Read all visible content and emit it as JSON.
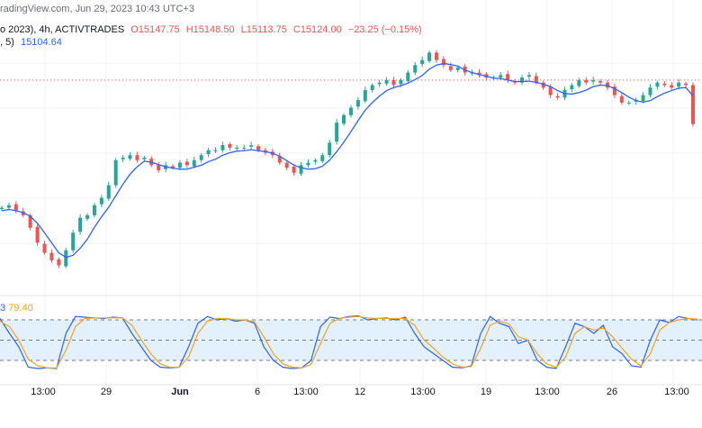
{
  "header": {
    "source_line": "radingView.com, Jun 29, 2023 10:43 UTC+3",
    "symbol_line_prefix": "o 2023), 4h, ACTIVTRADES",
    "open": "O15147.75",
    "high": "H15148.50",
    "low": "L15113.75",
    "close": "C15124.00",
    "change": "−23.25 (−0.15%)",
    "ma_label": ", 5)",
    "ma_value": "15104.64"
  },
  "oscillator": {
    "label_prefix": "3",
    "value": "79.40"
  },
  "time_axis": {
    "labels": [
      "13:00",
      "29",
      "Jun",
      "6",
      "13:00",
      "12",
      "13:00",
      "19",
      "13:00",
      "26",
      "13:00"
    ]
  },
  "colors": {
    "up": "#26a69a",
    "down": "#ef5350",
    "ma": "#2962ff",
    "stoch_k": "#2962ff",
    "stoch_d": "#f7a21b",
    "band_fill": "#e3f0fd",
    "last_price_line": "#ef5350"
  },
  "chart_data": [
    {
      "type": "candlestick",
      "title": "",
      "series": [
        {
          "name": "Price",
          "close_path": [
            14790,
            14800,
            14780,
            14760,
            14710,
            14650,
            14610,
            14580,
            14560,
            14620,
            14690,
            14750,
            14760,
            14800,
            14830,
            14880,
            14980,
            14990,
            15000,
            14980,
            14990,
            14960,
            14940,
            14960,
            14950,
            14970,
            14960,
            14980,
            15000,
            15020,
            15020,
            15040,
            15030,
            15030,
            15030,
            15040,
            15020,
            15010,
            15000,
            14970,
            14950,
            14930,
            14960,
            14970,
            14980,
            15000,
            15050,
            15130,
            15160,
            15190,
            15220,
            15260,
            15280,
            15290,
            15300,
            15280,
            15300,
            15330,
            15360,
            15380,
            15410,
            15380,
            15360,
            15340,
            15350,
            15330,
            15330,
            15320,
            15310,
            15310,
            15320,
            15300,
            15290,
            15310,
            15320,
            15290,
            15270,
            15240,
            15230,
            15260,
            15280,
            15300,
            15290,
            15300,
            15290,
            15270,
            15240,
            15210,
            15210,
            15220,
            15240,
            15270,
            15290,
            15280,
            15270,
            15290,
            15280,
            15124
          ]
        },
        {
          "name": "MA",
          "value": 15104.64
        }
      ]
    },
    {
      "type": "line",
      "title": "",
      "ylim": [
        0,
        100
      ],
      "levels": [
        80,
        50,
        20
      ],
      "series": [
        {
          "name": "%K",
          "values": [
            82,
            60,
            40,
            10,
            8,
            9,
            8,
            60,
            85,
            84,
            83,
            82,
            84,
            83,
            60,
            40,
            20,
            10,
            9,
            10,
            40,
            75,
            85,
            80,
            82,
            78,
            80,
            75,
            40,
            20,
            10,
            8,
            9,
            20,
            70,
            84,
            82,
            85,
            86,
            80,
            82,
            83,
            80,
            84,
            60,
            40,
            30,
            20,
            10,
            9,
            12,
            60,
            85,
            75,
            70,
            45,
            50,
            20,
            10,
            8,
            40,
            75,
            70,
            60,
            72,
            40,
            30,
            12,
            10,
            50,
            80,
            76,
            85,
            82,
            80
          ]
        },
        {
          "name": "%D",
          "values": [
            78,
            70,
            50,
            22,
            12,
            9,
            9,
            35,
            70,
            82,
            83,
            83,
            83,
            83,
            72,
            50,
            30,
            15,
            10,
            10,
            25,
            60,
            78,
            82,
            82,
            80,
            80,
            77,
            55,
            30,
            15,
            10,
            9,
            14,
            45,
            75,
            82,
            84,
            85,
            83,
            82,
            82,
            82,
            82,
            72,
            50,
            38,
            25,
            15,
            10,
            11,
            38,
            72,
            78,
            74,
            55,
            50,
            30,
            15,
            10,
            25,
            60,
            70,
            65,
            68,
            55,
            38,
            22,
            12,
            30,
            65,
            76,
            80,
            82,
            81
          ]
        }
      ]
    }
  ]
}
